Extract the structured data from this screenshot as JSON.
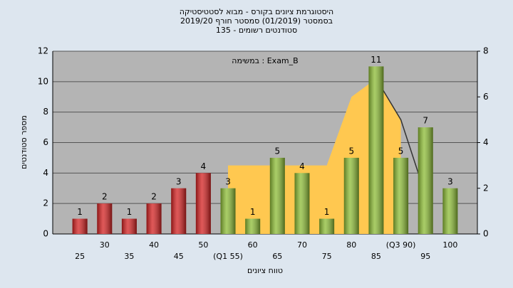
{
  "chart_data": {
    "type": "bar",
    "title": "היסטוגרמת ציונים בקורס - מבוא לסטטיסטיקה",
    "subtitle": "בסמסטר  (01/2019)  סמסטר חורף 2019/20",
    "subtitle2": "סטודנטים רשומים - 135",
    "annotation": "במשימה : Exam_B",
    "ylabel": "מספר סטודנטים",
    "xlabel": "טווח ציונים",
    "x": [
      25,
      30,
      35,
      40,
      45,
      50,
      55,
      60,
      65,
      70,
      75,
      80,
      85,
      90,
      95,
      100
    ],
    "values": [
      1,
      2,
      1,
      2,
      3,
      4,
      3,
      1,
      5,
      4,
      1,
      5,
      11,
      5,
      7,
      3
    ],
    "colors": [
      "#d42020",
      "#d42020",
      "#d42020",
      "#d42020",
      "#d42020",
      "#d42020",
      "#8cbc34",
      "#8cbc34",
      "#8cbc34",
      "#8cbc34",
      "#8cbc34",
      "#8cbc34",
      "#8cbc34",
      "#8cbc34",
      "#8cbc34",
      "#8cbc34"
    ],
    "xlim": [
      19.5,
      105.5
    ],
    "xticks": [
      25,
      30,
      35,
      40,
      45,
      50,
      {
        "value": 55,
        "label": "(Q1 55)"
      },
      60,
      65,
      70,
      75,
      80,
      85,
      {
        "value": 90,
        "label": "(Q3 90)"
      },
      95,
      100
    ],
    "ylim": [
      0,
      12
    ],
    "yticks": [
      0,
      2,
      4,
      6,
      8,
      10,
      12
    ],
    "y2lim": [
      0,
      8
    ],
    "y2ticks": [
      0,
      2,
      4,
      6,
      8
    ],
    "grid": true,
    "overlays": [
      {
        "type": "area",
        "axis": "y2",
        "color": "#ffc850",
        "values": [
          null,
          null,
          null,
          null,
          null,
          null,
          3,
          3,
          3,
          3,
          3,
          6,
          6.8,
          5,
          null,
          null
        ]
      },
      {
        "type": "line",
        "axis": "y2",
        "color": "#333333",
        "values": [
          null,
          null,
          null,
          null,
          null,
          null,
          null,
          null,
          null,
          null,
          null,
          null,
          6.8,
          5,
          1.7,
          null
        ]
      }
    ]
  }
}
